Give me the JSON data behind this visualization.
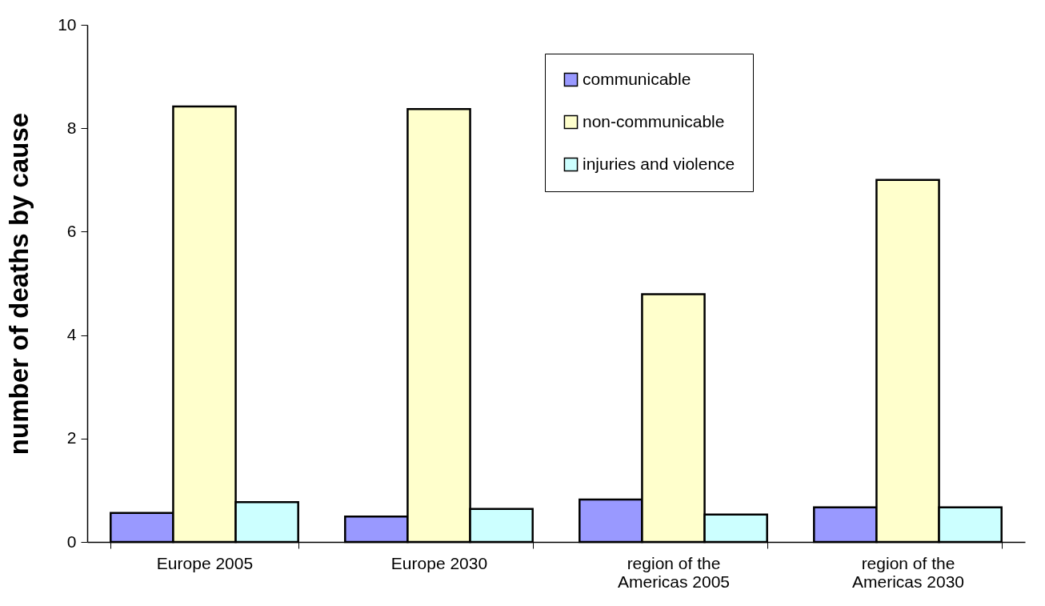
{
  "chart_data": {
    "type": "bar",
    "ylabel": "number of deaths by cause",
    "categories": [
      "Europe 2005",
      "Europe 2030",
      "region of the Americas 2005",
      "region of the Americas 2030"
    ],
    "series": [
      {
        "name": "communicable",
        "color": "#9999ff",
        "values": [
          0.56,
          0.49,
          0.82,
          0.67
        ]
      },
      {
        "name": "non-communicable",
        "color": "#ffffcc",
        "values": [
          8.42,
          8.37,
          4.79,
          7.0
        ]
      },
      {
        "name": "injuries and violence",
        "color": "#ccffff",
        "values": [
          0.77,
          0.64,
          0.53,
          0.67
        ]
      }
    ],
    "ylim": [
      0,
      10
    ],
    "yticks": [
      0,
      2,
      4,
      6,
      8,
      10
    ],
    "grid": false,
    "legend": "top right"
  }
}
